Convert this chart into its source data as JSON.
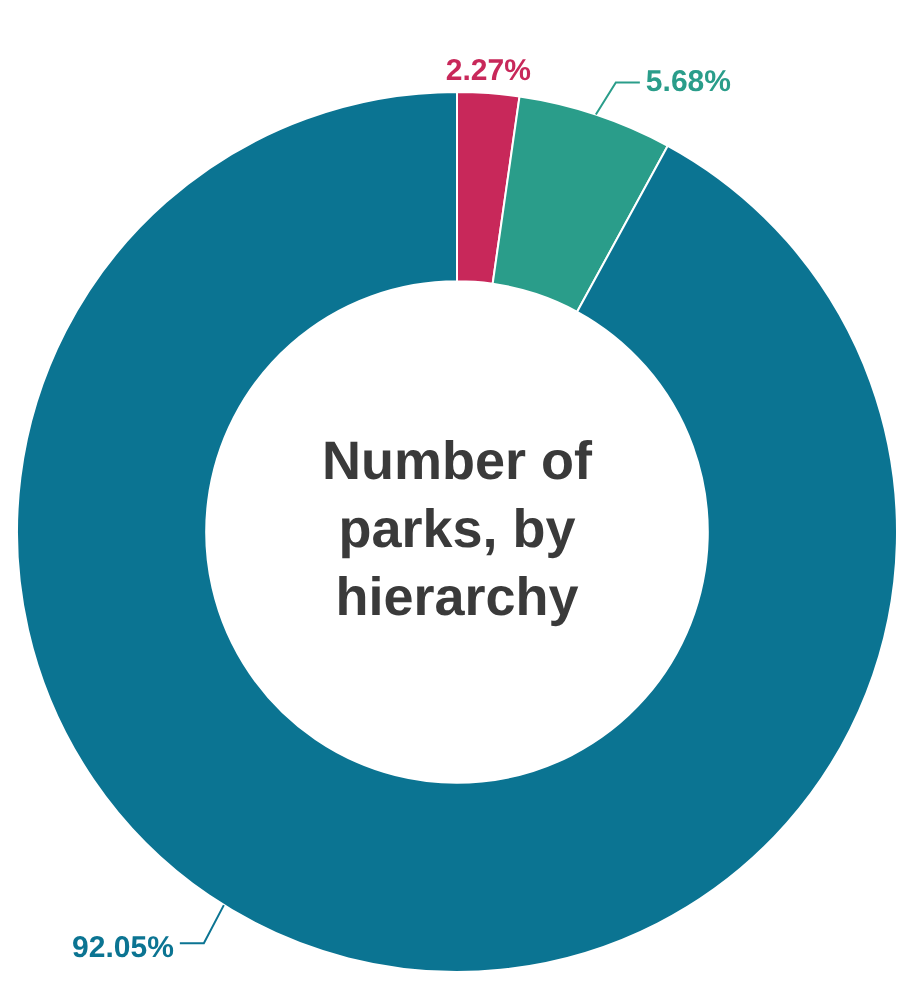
{
  "chart_data": {
    "type": "donut",
    "title": "Number of parks, by hierarchy",
    "categories": [
      null,
      null,
      null
    ],
    "values": [
      2.27,
      5.68,
      92.05
    ],
    "colors": [
      "#c8285a",
      "#2a9d8a",
      "#0b7492"
    ],
    "value_labels": [
      "2.27%",
      "5.68%",
      "92.05%"
    ],
    "legend": false
  }
}
